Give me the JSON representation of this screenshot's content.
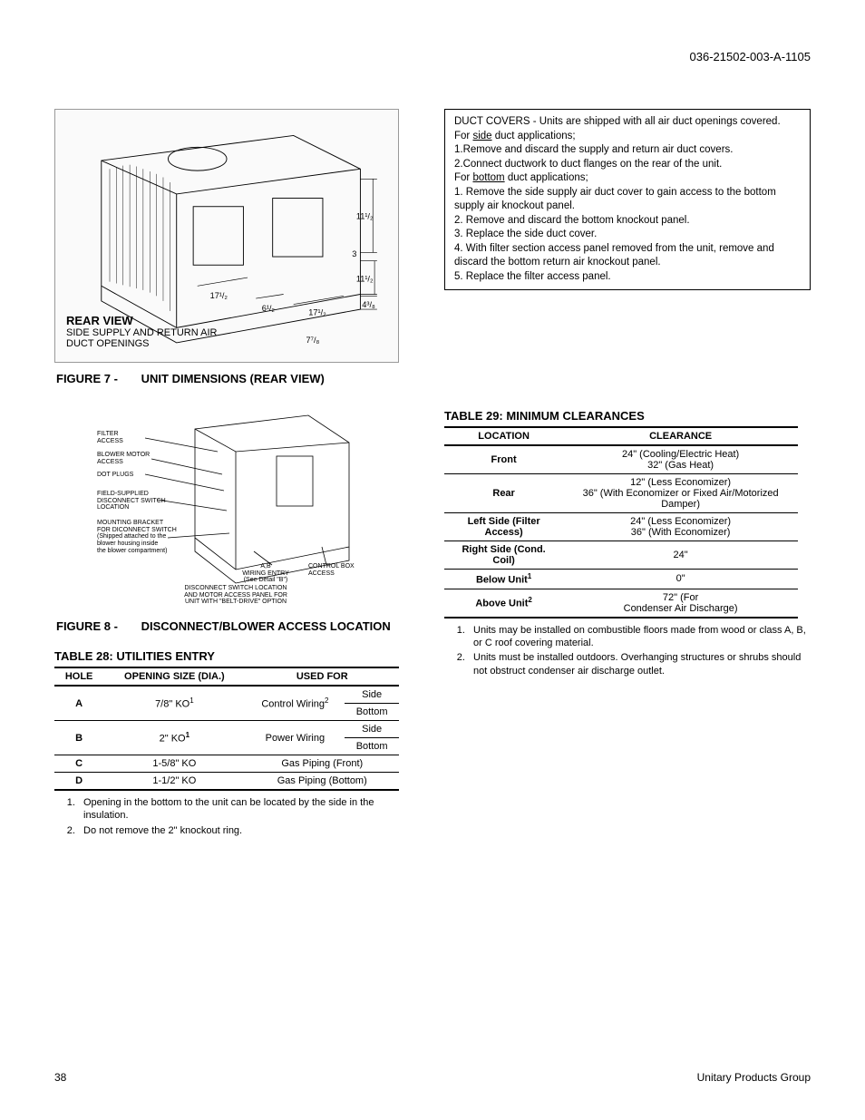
{
  "header": {
    "doc_code": "036-21502-003-A-1105"
  },
  "figure7": {
    "caption_num": "FIGURE 7 -",
    "caption_text": "UNIT DIMENSIONS (REAR VIEW)",
    "title": "REAR VIEW",
    "subtitle1": "SIDE SUPPLY AND RETURN AIR",
    "subtitle2": "DUCT OPENINGS",
    "dims": {
      "d1": "17¹/₂",
      "d2": "6¹/₂",
      "d3": "17¹/₂",
      "d4": "11¹/₂",
      "d5": "11¹/₂",
      "d6": "4³/₈",
      "d7": "7⁷/₈",
      "d8": "3"
    }
  },
  "duct_notes": {
    "intro": "DUCT COVERS - Units are shipped with all air duct openings covered.",
    "side_hdr": "For side duct applications;",
    "side": [
      "Remove and discard the supply and return air duct covers.",
      "Connect ductwork to duct flanges on the rear of the unit."
    ],
    "bottom_hdr": "For bottom duct applications;",
    "bottom": [
      "Remove the side supply air duct cover to gain access to the bottom supply air knockout panel.",
      "Remove and discard the bottom knockout panel.",
      "Replace the side duct cover.",
      "With filter section access panel removed from the unit, remove and discard the bottom return air knockout panel.",
      "Replace the filter access panel."
    ]
  },
  "figure8": {
    "caption_num": "FIGURE 8 -",
    "caption_text": "DISCONNECT/BLOWER ACCESS LOCATION",
    "labels": {
      "filter": "FILTER\nACCESS",
      "blower": "BLOWER MOTOR\nACCESS",
      "dot": "DOT PLUGS",
      "field": "FIELD-SUPPLIED\nDISCONNECT SWITCH\nLOCATION",
      "mount": "MOUNTING BRACKET\nFOR DICONNECT SWITCH\n(Shipped attached to the\nblower housing inside\nthe blower compartment)",
      "ab": "A,B\nWIRING ENTRY\n(See Detail \"B\")",
      "control": "CONTROL BOX\nACCESS",
      "footer": "DISCONNECT SWITCH LOCATION\nAND MOTOR ACCESS PANEL FOR\nUNIT WITH \"BELT-DRIVE\" OPTION"
    }
  },
  "table28": {
    "title": "TABLE 28: UTILITIES ENTRY",
    "headers": [
      "HOLE",
      "OPENING SIZE (DIA.)",
      "USED FOR"
    ],
    "rows": [
      {
        "hole": "A",
        "size": "7/8\" KO",
        "size_sup": "1",
        "use": "Control Wiring",
        "use_sup": "2",
        "sides": [
          "Side",
          "Bottom"
        ]
      },
      {
        "hole": "B",
        "size": "2\" KO",
        "size_sup": "1",
        "use": "Power Wiring",
        "use_sup": "",
        "sides": [
          "Side",
          "Bottom"
        ]
      },
      {
        "hole": "C",
        "size": "1-5/8\" KO",
        "size_sup": "",
        "use": "Gas Piping (Front)",
        "use_sup": "",
        "sides": []
      },
      {
        "hole": "D",
        "size": "1-1/2\" KO",
        "size_sup": "",
        "use": "Gas Piping (Bottom)",
        "use_sup": "",
        "sides": []
      }
    ],
    "footnotes": [
      "Opening in the bottom to the unit can be located by the side in the insulation.",
      "Do not remove the 2\" knockout ring."
    ]
  },
  "table29": {
    "title": "TABLE 29: MINIMUM CLEARANCES",
    "headers": [
      "LOCATION",
      "CLEARANCE"
    ],
    "rows": [
      {
        "loc": "Front",
        "sup": "",
        "clr": "24\" (Cooling/Electric Heat)\n32\" (Gas Heat)"
      },
      {
        "loc": "Rear",
        "sup": "",
        "clr": "12\" (Less Economizer)\n36\" (With Economizer or Fixed Air/Motorized Damper)"
      },
      {
        "loc": "Left Side (Filter Access)",
        "sup": "",
        "clr": "24\" (Less Economizer)\n36\" (With Economizer)"
      },
      {
        "loc": "Right Side (Cond. Coil)",
        "sup": "",
        "clr": "24\""
      },
      {
        "loc": "Below Unit",
        "sup": "1",
        "clr": "0\""
      },
      {
        "loc": "Above Unit",
        "sup": "2",
        "clr": "72\" (For\nCondenser Air Discharge)"
      }
    ],
    "footnotes": [
      "Units may be installed on combustible floors made from wood or class A, B, or C roof covering material.",
      "Units must be installed outdoors.  Overhanging structures or shrubs should not obstruct condenser air discharge outlet."
    ]
  },
  "footer": {
    "page": "38",
    "group": "Unitary Products Group"
  }
}
